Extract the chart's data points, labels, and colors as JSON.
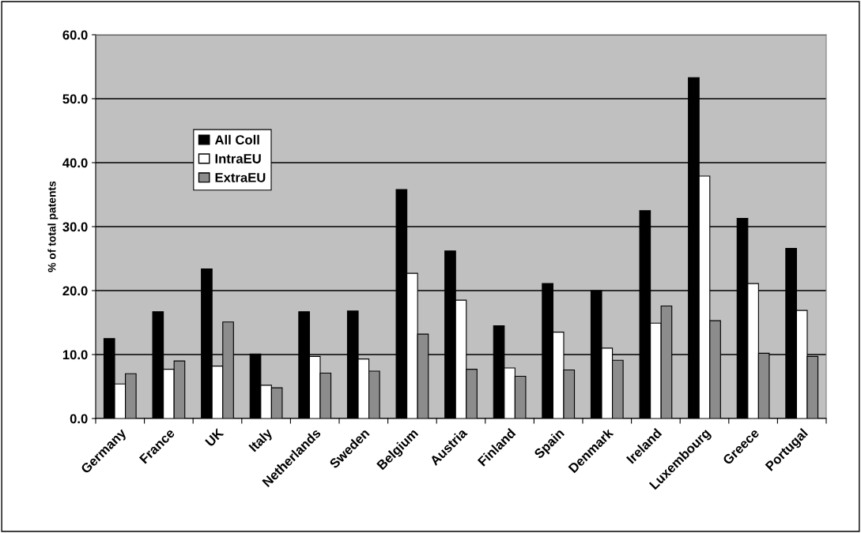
{
  "chart_data": {
    "type": "bar",
    "ylabel": "% of total patents",
    "categories": [
      "Germany",
      "France",
      "UK",
      "Italy",
      "Netherlands",
      "Sweden",
      "Belgium",
      "Austria",
      "Finland",
      "Spain",
      "Denmark",
      "Ireland",
      "Luxembourg",
      "Greece",
      "Portugal"
    ],
    "series": [
      {
        "name": "All Coll",
        "color": "#000000",
        "values": [
          12.5,
          16.7,
          23.4,
          10.1,
          16.7,
          16.8,
          35.8,
          26.2,
          14.5,
          21.1,
          20.0,
          32.5,
          53.3,
          31.3,
          26.6
        ]
      },
      {
        "name": "IntraEU",
        "color": "#ffffff",
        "values": [
          5.4,
          7.7,
          8.2,
          5.2,
          9.7,
          9.3,
          22.7,
          18.5,
          7.9,
          13.5,
          11.0,
          14.9,
          37.9,
          21.1,
          16.9
        ]
      },
      {
        "name": "ExtraEU",
        "color": "#8c8c8c",
        "values": [
          7.0,
          9.0,
          15.1,
          4.8,
          7.1,
          7.4,
          13.2,
          7.7,
          6.6,
          7.6,
          9.1,
          17.6,
          15.3,
          10.2,
          9.7
        ]
      }
    ],
    "ylim": [
      0,
      60
    ],
    "yticks": [
      {
        "value": 0,
        "label": "0.0"
      },
      {
        "value": 10,
        "label": "10.0"
      },
      {
        "value": 20,
        "label": "20.0"
      },
      {
        "value": 30,
        "label": "30.0"
      },
      {
        "value": 40,
        "label": "40.0"
      },
      {
        "value": 50,
        "label": "50.0"
      },
      {
        "value": 60,
        "label": "60.0"
      }
    ],
    "grid": "y",
    "legend": "top left"
  }
}
